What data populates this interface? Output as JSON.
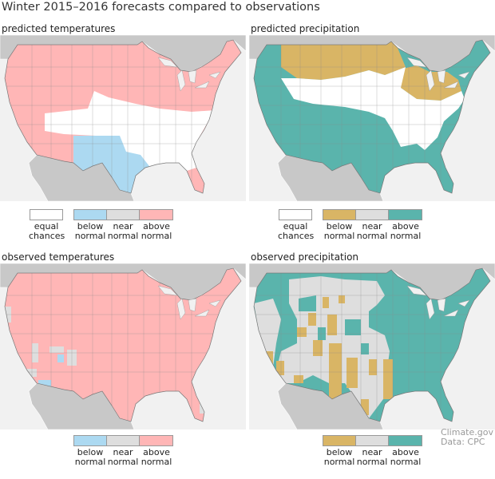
{
  "title": "Winter 2015–2016 forecasts compared to observations",
  "colors": {
    "equal_chances": "#ffffff",
    "below_temp": "#acd9f1",
    "near_normal": "#dedede",
    "above_temp": "#ffb6b6",
    "below_precip": "#d9b565",
    "above_precip": "#5ab4ac",
    "land_outside": "#c8c8c8",
    "water": "#f1f1f1"
  },
  "panels": {
    "predicted_temp": {
      "title": "predicted temperatures"
    },
    "predicted_precip": {
      "title": "predicted precipitation"
    },
    "observed_temp": {
      "title": "observed temperatures"
    },
    "observed_precip": {
      "title": "observed precipitation"
    }
  },
  "legend": {
    "equal": [
      "equal",
      "chances"
    ],
    "below": [
      "below",
      "normal"
    ],
    "near": [
      "near",
      "normal"
    ],
    "above": [
      "above",
      "normal"
    ]
  },
  "credit": {
    "line1": "Climate.gov",
    "line2": "Data: CPC"
  }
}
